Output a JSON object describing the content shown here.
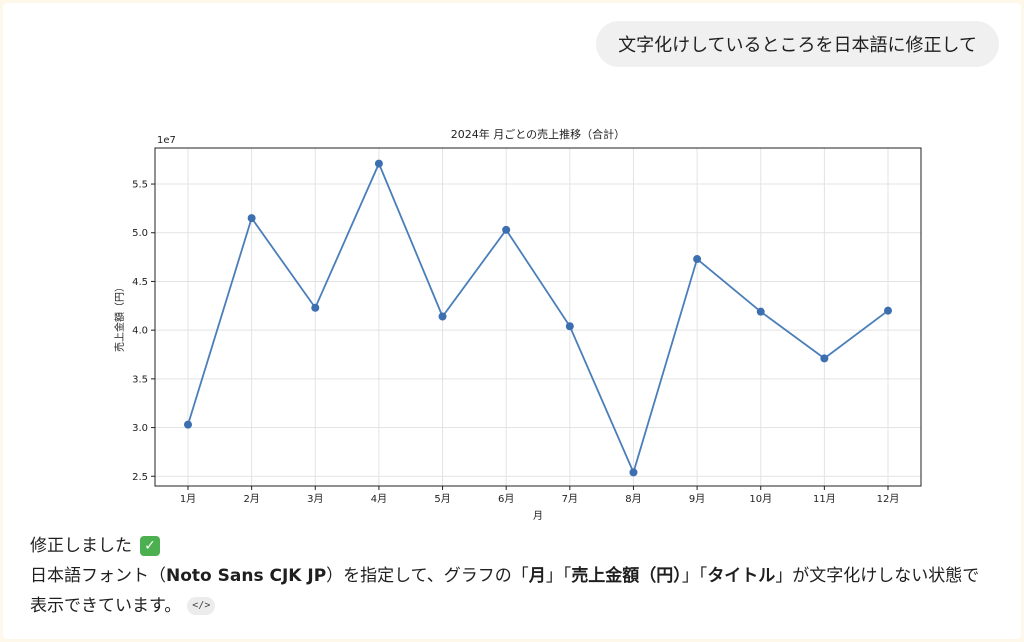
{
  "user_message": "文字化けしているところを日本語に修正して",
  "assistant": {
    "line1": "修正しました",
    "check_icon": "white-check-mark-icon",
    "line2_parts": [
      "日本語フォント（",
      "Noto Sans CJK JP",
      "）を指定して、グラフの「",
      "月",
      "」「",
      "売上金額（円）",
      "」「",
      "タイトル",
      "」が文字化けしない状態で"
    ],
    "line3": "表示できています。",
    "code_chip_icon": "code-icon"
  },
  "chart_data": {
    "type": "line",
    "title": "2024年 月ごとの売上推移（合計）",
    "xlabel": "月",
    "ylabel": "売上金額（円）",
    "y_offset_label": "1e7",
    "categories": [
      "1月",
      "2月",
      "3月",
      "4月",
      "5月",
      "6月",
      "7月",
      "8月",
      "9月",
      "10月",
      "11月",
      "12月"
    ],
    "values": [
      30300000,
      51500000,
      42300000,
      57100000,
      41400000,
      50300000,
      40400000,
      25400000,
      47300000,
      41900000,
      37100000,
      42000000
    ],
    "y_ticks": [
      2.5,
      3.0,
      3.5,
      4.0,
      4.5,
      5.0,
      5.5
    ],
    "ylim": [
      24000000,
      58700000
    ],
    "grid": true,
    "line_color": "#4a7ebb",
    "marker_color": "#3c6fb0"
  }
}
